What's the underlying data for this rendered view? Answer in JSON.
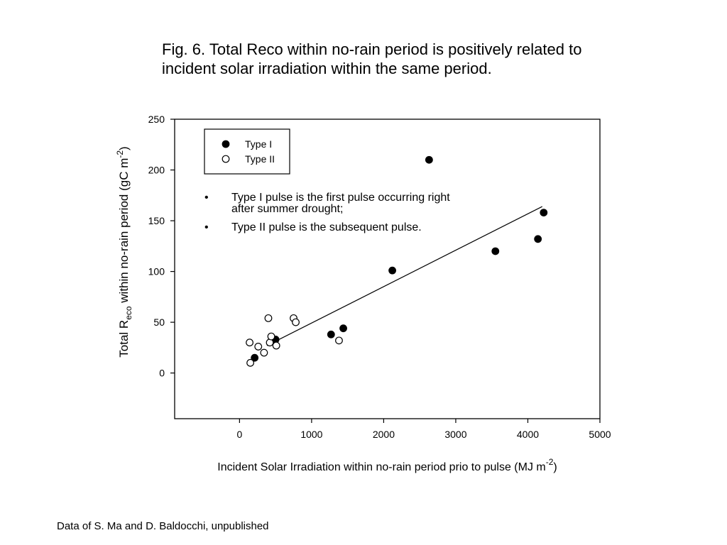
{
  "figure": {
    "title_line1": "Fig. 6.  Total Reco within no-rain period is positively related to",
    "title_line2": "incident solar irradiation within the same period."
  },
  "credit": "Data of S. Ma and D. Baldocchi, unpublished",
  "chart_data": {
    "type": "scatter",
    "title": "",
    "xlabel": "Incident Solar Irradiation within no-rain period prio to pulse (MJ m-2)",
    "xlabel_parts": {
      "main": "Incident Solar Irradiation within no-rain period prio to pulse (MJ m",
      "sup": "-2",
      "end": ")"
    },
    "ylabel": "Total Reco within no-rain period (gC m-2)",
    "ylabel_parts": {
      "pre": "Total  R",
      "sub": "eco",
      "mid": " within no-rain period (gC m",
      "sup": "-2",
      "end": ")"
    },
    "xlim": [
      -900,
      5000
    ],
    "ylim": [
      -45,
      250
    ],
    "x_ticks": [
      0,
      1000,
      2000,
      3000,
      4000,
      5000
    ],
    "x_tick_labels": [
      "0",
      "1000",
      "2000",
      "3000",
      "4000",
      "5000"
    ],
    "y_ticks": [
      0,
      50,
      100,
      150,
      200,
      250
    ],
    "y_tick_labels": [
      "0",
      "50",
      "100",
      "150",
      "200",
      "250"
    ],
    "grid": false,
    "legend_position": "top-left",
    "series": [
      {
        "name": "Type I",
        "marker": "filled-circle",
        "color": "#000000",
        "points": [
          {
            "x": 210,
            "y": 15
          },
          {
            "x": 500,
            "y": 33
          },
          {
            "x": 1270,
            "y": 38
          },
          {
            "x": 1440,
            "y": 44
          },
          {
            "x": 2120,
            "y": 101
          },
          {
            "x": 2630,
            "y": 210
          },
          {
            "x": 3550,
            "y": 120
          },
          {
            "x": 4140,
            "y": 132
          },
          {
            "x": 4220,
            "y": 158
          }
        ]
      },
      {
        "name": "Type II",
        "marker": "open-circle",
        "color": "#000000",
        "points": [
          {
            "x": 140,
            "y": 30
          },
          {
            "x": 150,
            "y": 10
          },
          {
            "x": 260,
            "y": 26
          },
          {
            "x": 340,
            "y": 20
          },
          {
            "x": 400,
            "y": 54
          },
          {
            "x": 420,
            "y": 30
          },
          {
            "x": 440,
            "y": 36
          },
          {
            "x": 510,
            "y": 27
          },
          {
            "x": 750,
            "y": 54
          },
          {
            "x": 780,
            "y": 50
          },
          {
            "x": 1380,
            "y": 32
          }
        ]
      }
    ],
    "regression_line": {
      "x": [
        380,
        4200
      ],
      "y": [
        27,
        164
      ]
    },
    "annotations": [
      {
        "bullet": "•",
        "lines": [
          "Type I pulse is the first pulse occurring right",
          "after summer drought;"
        ]
      },
      {
        "bullet": "•",
        "lines": [
          "Type II pulse is the subsequent pulse."
        ]
      }
    ]
  }
}
